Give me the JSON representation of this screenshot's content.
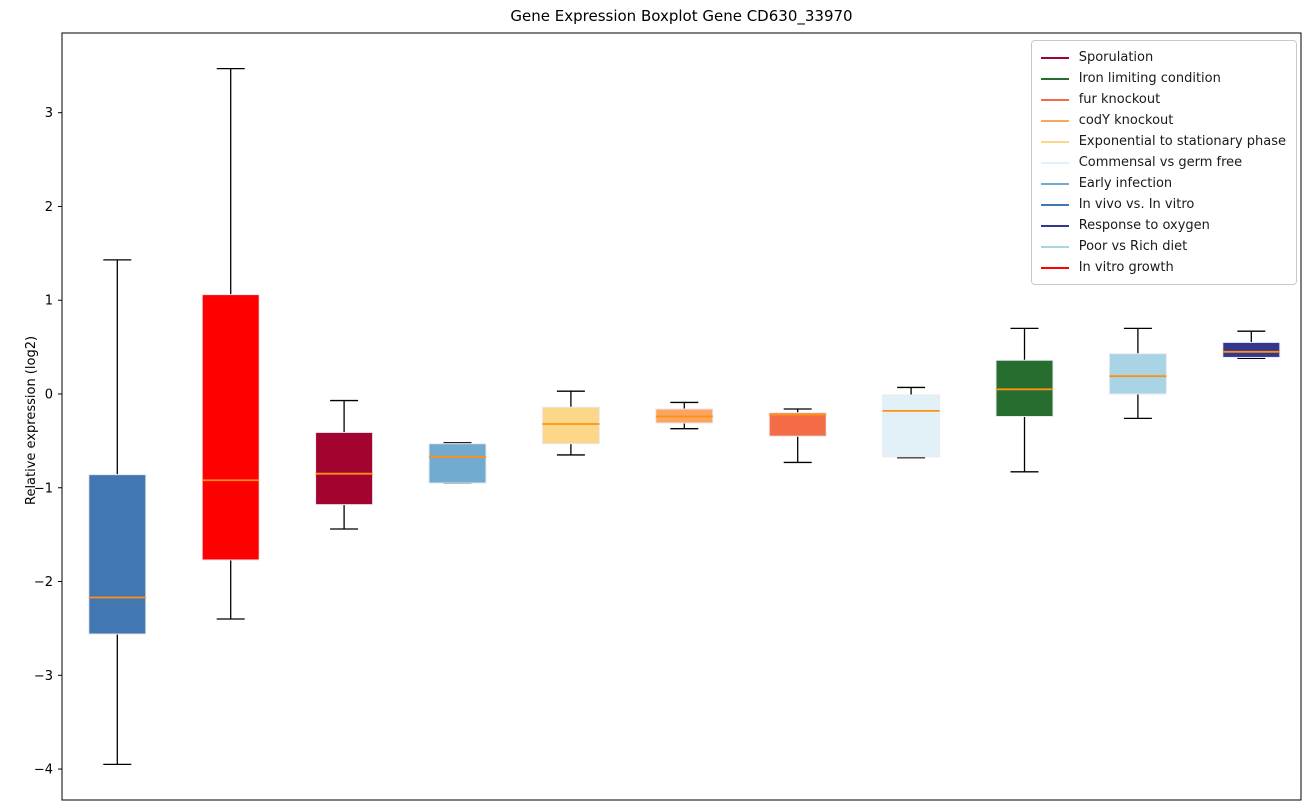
{
  "chart_data": {
    "type": "boxplot",
    "title": "Gene Expression Boxplot Gene CD630_33970",
    "xlabel": "",
    "ylabel": "Relative expression (log2)",
    "ylim": [
      -4.33,
      3.85
    ],
    "yticks": [
      3,
      2,
      1,
      0,
      -1,
      -2,
      -3,
      -4
    ],
    "grid": false,
    "legend_position": "upper right",
    "median_color": "#ff9015",
    "whisker_color": "#000000",
    "box_edge_color": "#eaeaf2",
    "boxes": [
      {
        "name": "In vivo vs. In vitro",
        "color": "#4377b2",
        "whisker_low": -3.95,
        "q1": -2.56,
        "median": -2.17,
        "q3": -0.86,
        "whisker_high": 1.43
      },
      {
        "name": "In vitro growth",
        "color": "#fe0000",
        "whisker_low": -2.4,
        "q1": -1.77,
        "median": -0.92,
        "q3": 1.06,
        "whisker_high": 3.47
      },
      {
        "name": "Sporulation",
        "color": "#a2032f",
        "whisker_low": -1.44,
        "q1": -1.18,
        "median": -0.85,
        "q3": -0.41,
        "whisker_high": -0.07
      },
      {
        "name": "Early infection",
        "color": "#72aad0",
        "whisker_low": -0.95,
        "q1": -0.95,
        "median": -0.67,
        "q3": -0.53,
        "whisker_high": -0.52
      },
      {
        "name": "Exponential to stationary phase",
        "color": "#fcd78a",
        "whisker_low": -0.65,
        "q1": -0.53,
        "median": -0.32,
        "q3": -0.14,
        "whisker_high": 0.03
      },
      {
        "name": "codY knockout",
        "color": "#fca55e",
        "whisker_low": -0.37,
        "q1": -0.31,
        "median": -0.24,
        "q3": -0.16,
        "whisker_high": -0.09
      },
      {
        "name": "fur knockout",
        "color": "#f36c47",
        "whisker_low": -0.73,
        "q1": -0.45,
        "median": -0.22,
        "q3": -0.2,
        "whisker_high": -0.16
      },
      {
        "name": "Commensal vs germ free",
        "color": "#e2f1f7",
        "whisker_low": -0.68,
        "q1": -0.67,
        "median": -0.18,
        "q3": -0.01,
        "whisker_high": 0.07
      },
      {
        "name": "Iron limiting condition",
        "color": "#276d2f",
        "whisker_low": -0.83,
        "q1": -0.24,
        "median": 0.05,
        "q3": 0.36,
        "whisker_high": 0.7
      },
      {
        "name": "Poor vs Rich diet",
        "color": "#a9d4e5",
        "whisker_low": -0.26,
        "q1": 0.0,
        "median": 0.19,
        "q3": 0.43,
        "whisker_high": 0.7
      },
      {
        "name": "Response to oxygen",
        "color": "#34388c",
        "whisker_low": 0.38,
        "q1": 0.39,
        "median": 0.45,
        "q3": 0.55,
        "whisker_high": 0.67
      }
    ],
    "legend": {
      "items": [
        {
          "label": "Sporulation",
          "color": "#a2032f"
        },
        {
          "label": "Iron limiting condition",
          "color": "#276d2f"
        },
        {
          "label": "fur knockout",
          "color": "#f36c47"
        },
        {
          "label": "codY knockout",
          "color": "#fca55e"
        },
        {
          "label": "Exponential to stationary phase",
          "color": "#fcd78a"
        },
        {
          "label": "Commensal vs germ free",
          "color": "#e2f1f7"
        },
        {
          "label": "Early infection",
          "color": "#72aad0"
        },
        {
          "label": "In vivo vs. In vitro",
          "color": "#4377b2"
        },
        {
          "label": "Response to oxygen",
          "color": "#34388c"
        },
        {
          "label": "Poor vs Rich diet",
          "color": "#a9d4e5"
        },
        {
          "label": "In vitro growth",
          "color": "#fe0000"
        }
      ]
    }
  }
}
